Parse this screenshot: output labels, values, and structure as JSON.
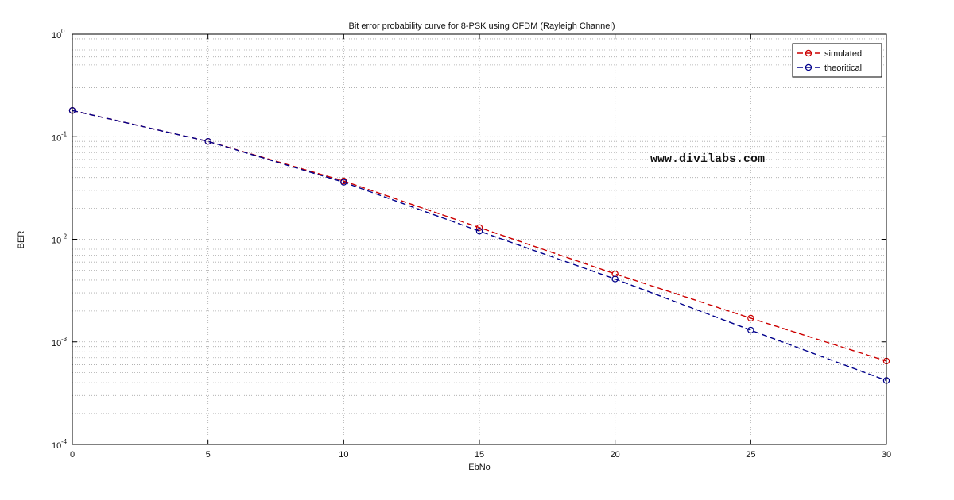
{
  "chart_data": {
    "type": "line",
    "title": "Bit error probability curve for 8-PSK using OFDM (Rayleigh Channel)",
    "xlabel": "EbNo",
    "ylabel": "BER",
    "x": [
      0,
      5,
      10,
      15,
      20,
      25,
      30
    ],
    "xlim": [
      0,
      30
    ],
    "ylim": [
      0.0001,
      1
    ],
    "yscale": "log",
    "grid": true,
    "legend_position": "top-right",
    "xticks": [
      "0",
      "5",
      "10",
      "15",
      "20",
      "25",
      "30"
    ],
    "yticks": [
      {
        "base": "10",
        "exp": "0",
        "value": 1
      },
      {
        "base": "10",
        "exp": "-1",
        "value": 0.1
      },
      {
        "base": "10",
        "exp": "-2",
        "value": 0.01
      },
      {
        "base": "10",
        "exp": "-3",
        "value": 0.001
      },
      {
        "base": "10",
        "exp": "-4",
        "value": 0.0001
      }
    ],
    "series": [
      {
        "name": "simulated",
        "color": "#cc0000",
        "values": [
          0.18,
          0.09,
          0.037,
          0.013,
          0.0046,
          0.0017,
          0.00065
        ]
      },
      {
        "name": "theoritical",
        "color": "#00008b",
        "values": [
          0.18,
          0.09,
          0.036,
          0.012,
          0.0041,
          0.0013,
          0.00042
        ]
      }
    ]
  },
  "watermark": "www.divilabs.com"
}
